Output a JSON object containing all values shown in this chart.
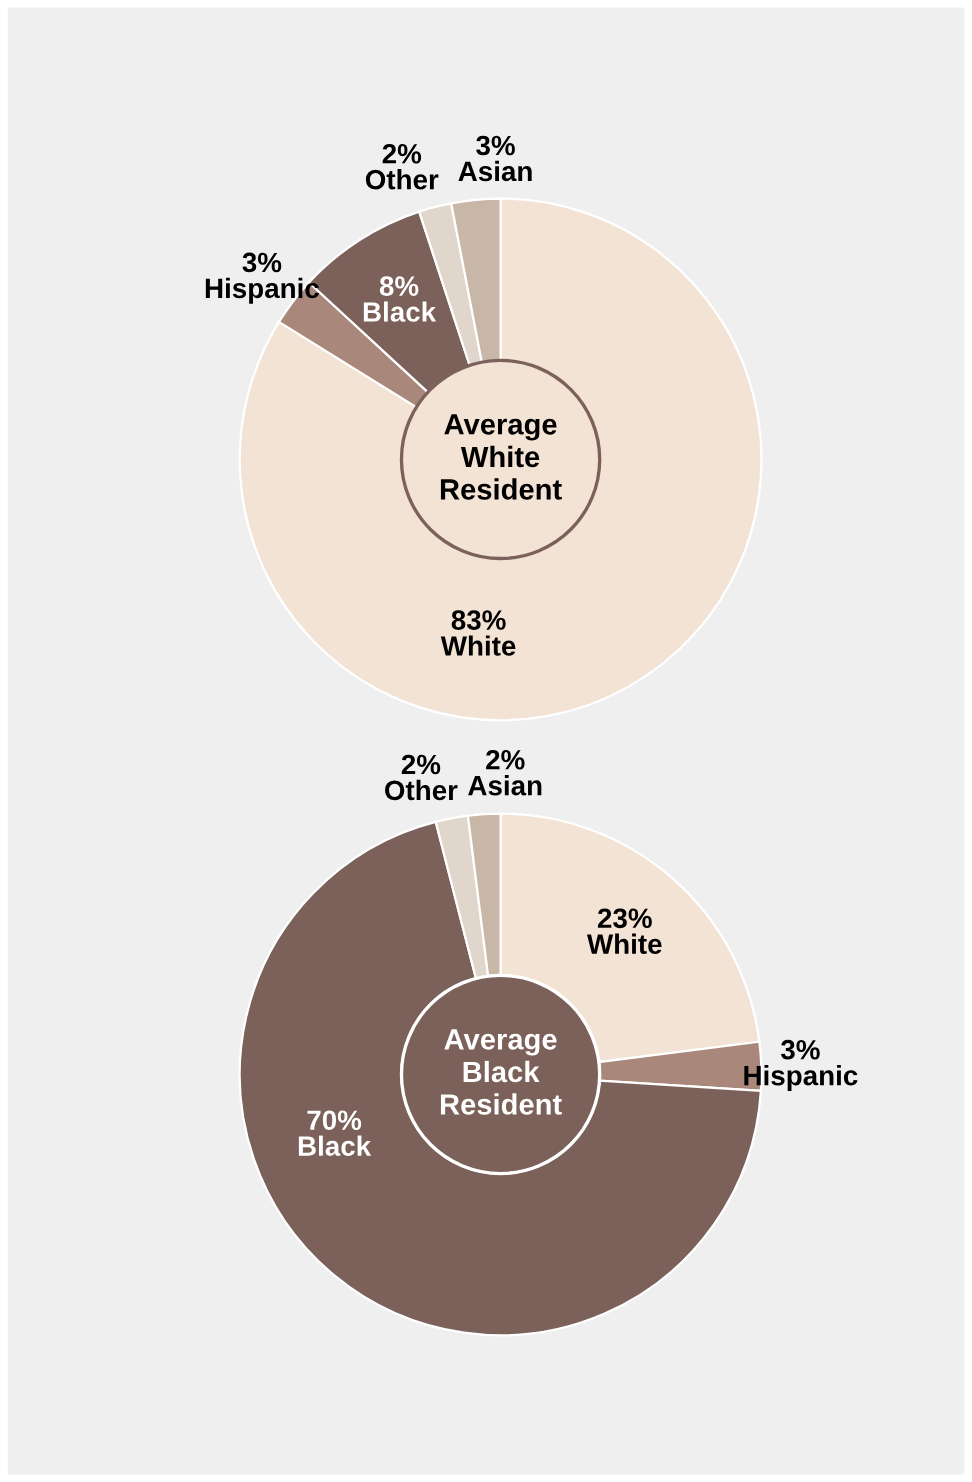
{
  "chart_data": [
    {
      "type": "donut",
      "title": "Average\nWhite\nResident",
      "categories": [
        "White",
        "Hispanic",
        "Black",
        "Other",
        "Asian"
      ],
      "values": [
        83,
        3,
        8,
        2,
        3
      ],
      "value_labels": [
        "83%",
        "3%",
        "8%",
        "2%",
        "3%"
      ],
      "colors": [
        "#f2e3d5",
        "#a9877a",
        "#7b615a",
        "#e0d6cc",
        "#c8b6a6"
      ],
      "legend": false
    },
    {
      "type": "donut",
      "title": "Average\nBlack\nResident",
      "categories": [
        "White",
        "Hispanic",
        "Black",
        "Other",
        "Asian"
      ],
      "values": [
        23,
        3,
        70,
        2,
        2
      ],
      "value_labels": [
        "23%",
        "3%",
        "70%",
        "2%",
        "2%"
      ],
      "colors": [
        "#f2e3d5",
        "#a9877a",
        "#7b615a",
        "#e0d6cc",
        "#c8b6a6"
      ],
      "legend": false
    }
  ]
}
